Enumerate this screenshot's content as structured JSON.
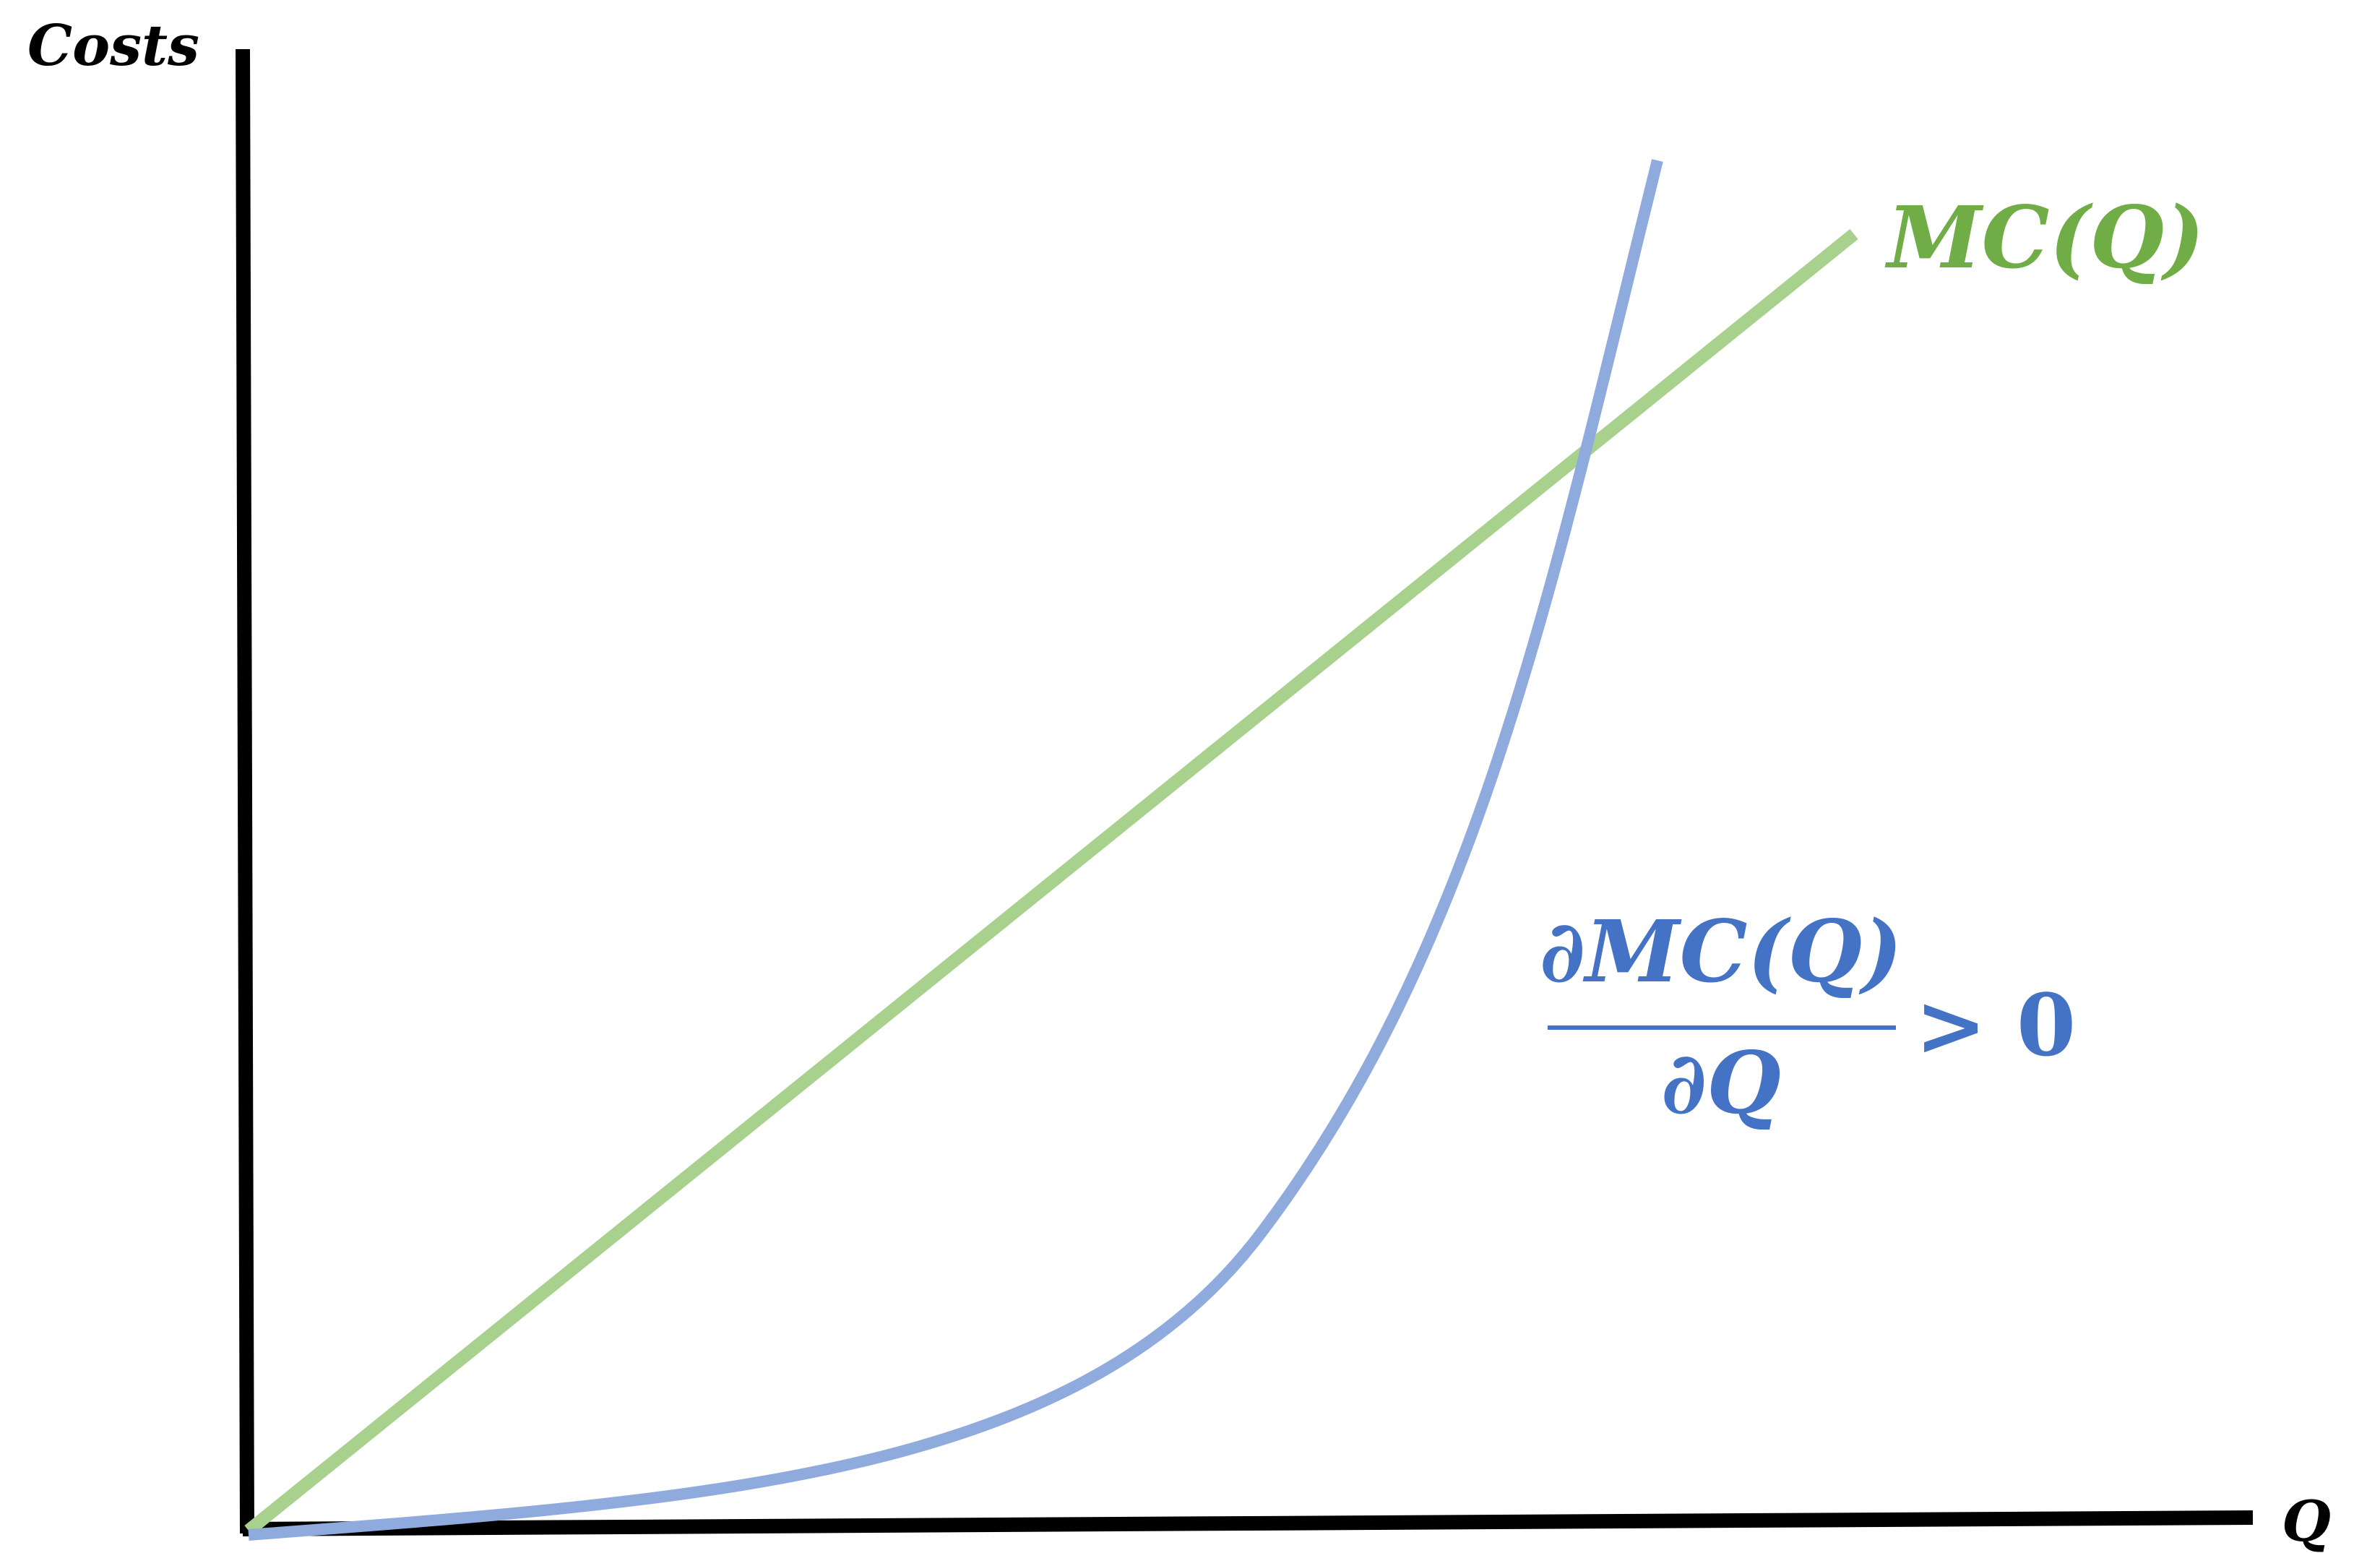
{
  "chart_data": {
    "type": "line",
    "ylabel": "Costs",
    "xlabel": "Q",
    "axis_color": "#000000",
    "grid": false,
    "series": [
      {
        "name": "MC(Q)",
        "color": "#a9d18e",
        "label_color": "#70ad47",
        "shape": "linear increasing"
      },
      {
        "color": "#8faadc",
        "shape": "convex increasing"
      }
    ],
    "annotation": {
      "numerator": "∂MC(Q)",
      "denominator": "∂Q",
      "relation": ">",
      "value": "0",
      "color": "#4472c4"
    }
  }
}
